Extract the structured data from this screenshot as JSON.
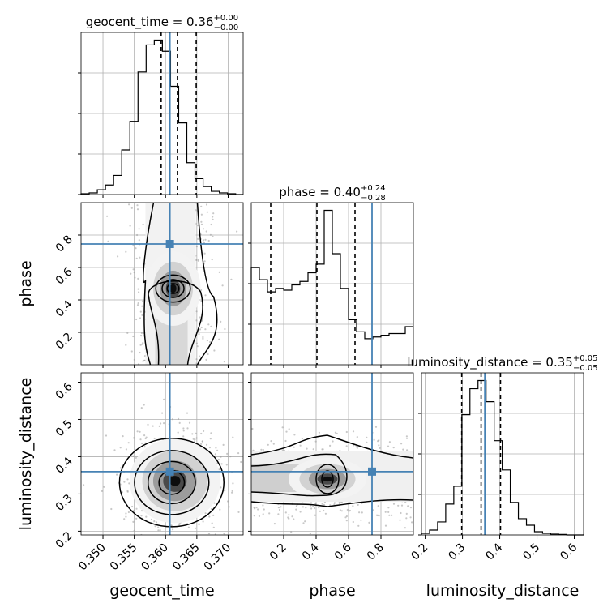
{
  "chart_data": {
    "type": "corner",
    "parameters": [
      "geocent_time",
      "phase",
      "luminosity_distance"
    ],
    "truths": [
      0.3607,
      0.745,
      0.36
    ],
    "truth_color": "#4682b4",
    "ranges": [
      [
        0.3465,
        0.3724
      ],
      [
        0.0,
        1.0
      ],
      [
        0.19,
        0.625
      ]
    ],
    "titles": [
      {
        "param": "geocent_time",
        "median": "0.36",
        "plus": "+0.00",
        "minus": "−0.00"
      },
      {
        "param": "phase",
        "median": "0.40",
        "plus": "+0.24",
        "minus": "−0.28"
      },
      {
        "param": "luminosity_distance",
        "median": "0.35",
        "plus": "+0.05",
        "minus": "−0.05"
      }
    ],
    "quantiles": {
      "geocent_time": [
        0.3593,
        0.3619,
        0.3649
      ],
      "phase": [
        0.12,
        0.405,
        0.64
      ],
      "luminosity_distance": [
        0.298,
        0.35,
        0.402
      ]
    },
    "ticks": {
      "geocent_time": [
        "0.350",
        "0.355",
        "0.360",
        "0.365",
        "0.370"
      ],
      "phase": [
        "0.2",
        "0.4",
        "0.6",
        "0.8"
      ],
      "luminosity_distance": [
        "0.2",
        "0.3",
        "0.4",
        "0.5",
        "0.6"
      ]
    },
    "histograms": {
      "geocent_time": {
        "edges": [
          0.3465,
          0.3478,
          0.3491,
          0.3504,
          0.3517,
          0.353,
          0.3543,
          0.3556,
          0.3569,
          0.3582,
          0.3595,
          0.3608,
          0.3621,
          0.3634,
          0.3647,
          0.366,
          0.3673,
          0.3686,
          0.3699,
          0.3712,
          0.3724
        ],
        "counts": [
          0.005,
          0.01,
          0.03,
          0.06,
          0.12,
          0.28,
          0.46,
          0.77,
          0.94,
          0.97,
          0.9,
          0.68,
          0.45,
          0.2,
          0.1,
          0.05,
          0.02,
          0.01,
          0.005,
          0.0
        ]
      },
      "phase": {
        "edges": [
          0.0,
          0.05,
          0.1,
          0.15,
          0.2,
          0.25,
          0.3,
          0.35,
          0.4,
          0.45,
          0.5,
          0.55,
          0.6,
          0.65,
          0.7,
          0.75,
          0.8,
          0.85,
          0.9,
          0.95,
          1.0
        ],
        "counts": [
          0.56,
          0.49,
          0.42,
          0.44,
          0.43,
          0.46,
          0.48,
          0.53,
          0.58,
          0.89,
          0.64,
          0.44,
          0.26,
          0.19,
          0.15,
          0.16,
          0.17,
          0.18,
          0.18,
          0.22
        ]
      },
      "luminosity_distance": {
        "edges": [
          0.19,
          0.2117,
          0.2333,
          0.255,
          0.2767,
          0.2983,
          0.32,
          0.3417,
          0.3633,
          0.385,
          0.4067,
          0.4283,
          0.45,
          0.4717,
          0.4933,
          0.515,
          0.5367,
          0.5583,
          0.58,
          0.6017,
          0.625
        ],
        "counts": [
          0.01,
          0.03,
          0.08,
          0.19,
          0.3,
          0.74,
          0.9,
          0.95,
          0.82,
          0.58,
          0.4,
          0.2,
          0.1,
          0.06,
          0.02,
          0.01,
          0.005,
          0.003,
          0.0,
          0.0
        ]
      }
    },
    "joint_modes": {
      "geocent_time_vs_phase": {
        "x": 0.3612,
        "y": 0.47
      },
      "geocent_time_vs_luminosity_distance": {
        "x": 0.3615,
        "y": 0.335
      },
      "phase_vs_luminosity_distance": {
        "x": 0.47,
        "y": 0.34
      }
    },
    "grid": true,
    "legend": "none"
  }
}
